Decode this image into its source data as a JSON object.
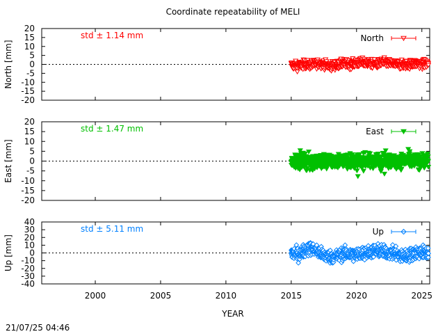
{
  "title": "Coordinate repeatability of MELI",
  "xlabel": "YEAR",
  "timestamp": "21/07/25 04:46",
  "chart_data": {
    "type": "scatter",
    "title": "Coordinate repeatability of MELI",
    "xlabel": "YEAR",
    "xlim": [
      1995.9,
      2025.6
    ],
    "xticks": [
      2000,
      2005,
      2010,
      2015,
      2020,
      2025
    ],
    "grid": false,
    "panels": [
      {
        "name": "North",
        "ylabel": "North [mm]",
        "ylim": [
          -20,
          20
        ],
        "yticks": [
          -20,
          -15,
          -10,
          -5,
          0,
          5,
          10,
          15,
          20
        ],
        "std_label": "std ± 1.14 mm",
        "legend": "North",
        "legend_position": "top-right",
        "marker": "triangle-down-open",
        "color": "#ff0000",
        "series": {
          "x": [
            2015.0,
            2015.5,
            2016.0,
            2016.5,
            2017.0,
            2017.5,
            2018.0,
            2018.5,
            2019.0,
            2019.5,
            2020.0,
            2020.5,
            2021.0,
            2021.5,
            2022.0,
            2022.5,
            2023.0,
            2023.5,
            2024.0,
            2024.5,
            2025.0,
            2025.5
          ],
          "y": [
            -0.5,
            -1,
            0,
            -0.5,
            0.5,
            0,
            -1,
            -0.5,
            0.5,
            0,
            0.5,
            1,
            0.5,
            0,
            1,
            0.5,
            0,
            -0.5,
            0,
            0.5,
            0,
            0.5
          ],
          "spread": 2.3
        }
      },
      {
        "name": "East",
        "ylabel": "East [mm]",
        "ylim": [
          -20,
          20
        ],
        "yticks": [
          -20,
          -15,
          -10,
          -5,
          0,
          5,
          10,
          15,
          20
        ],
        "std_label": "std ± 1.47 mm",
        "legend": "East",
        "legend_position": "top-right",
        "marker": "triangle-down-filled",
        "color": "#00c000",
        "series": {
          "x": [
            2015.0,
            2015.5,
            2016.0,
            2016.5,
            2017.0,
            2017.5,
            2018.0,
            2018.5,
            2019.0,
            2019.5,
            2020.0,
            2020.5,
            2021.0,
            2021.5,
            2022.0,
            2022.5,
            2023.0,
            2023.5,
            2024.0,
            2024.5,
            2025.0,
            2025.5
          ],
          "y": [
            -1,
            0,
            0,
            -0.5,
            0,
            -0.5,
            0,
            0,
            0.5,
            0,
            -0.5,
            0,
            0,
            0.5,
            0,
            0,
            -0.5,
            0,
            0.5,
            0,
            0,
            0.5
          ],
          "spread": 3.5
        }
      },
      {
        "name": "Up",
        "ylabel": "Up [mm]",
        "ylim": [
          -40,
          40
        ],
        "yticks": [
          -40,
          -30,
          -20,
          -10,
          0,
          10,
          20,
          30,
          40
        ],
        "std_label": "std ± 5.11 mm",
        "legend": "Up",
        "legend_position": "top-right",
        "marker": "diamond-open",
        "color": "#0080ff",
        "series": {
          "x": [
            2015.0,
            2015.5,
            2016.0,
            2016.5,
            2017.0,
            2017.5,
            2018.0,
            2018.5,
            2019.0,
            2019.5,
            2020.0,
            2020.5,
            2021.0,
            2021.5,
            2022.0,
            2022.5,
            2023.0,
            2023.5,
            2024.0,
            2024.5,
            2025.0,
            2025.5
          ],
          "y": [
            0,
            -2,
            3,
            6,
            2,
            -3,
            -5,
            -4,
            -1,
            -2,
            -2,
            0,
            1,
            3,
            2,
            0,
            -1,
            -5,
            -3,
            0,
            1,
            0
          ],
          "spread": 8
        }
      }
    ]
  }
}
